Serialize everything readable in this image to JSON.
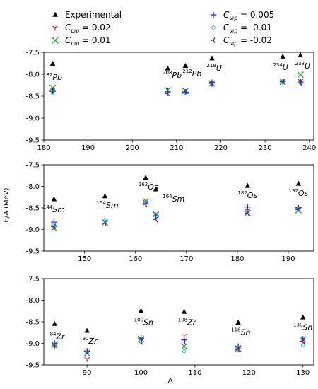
{
  "legend": {
    "placement": "top",
    "entries": [
      {
        "key": "exp",
        "label": "Experimental",
        "marker": "triangle",
        "color": "#000000"
      },
      {
        "key": "c002",
        "label": "Cωρ = 0.02",
        "marker": "tri_down",
        "color": "#d62728"
      },
      {
        "key": "c001",
        "label": "Cωρ = 0.01",
        "marker": "x",
        "color": "#2ca02c"
      },
      {
        "key": "c0005",
        "label": "Cωρ = 0.005",
        "marker": "plus",
        "color": "#1f2bd6"
      },
      {
        "key": "cm001",
        "label": "Cωρ = -0.01",
        "marker": "circle",
        "color": "#17becf"
      },
      {
        "key": "cm002",
        "label": "Cωρ = -0.02",
        "marker": "tri_left",
        "color": "#6a1b9a"
      }
    ]
  },
  "ylabel": "E/A (MeV)",
  "xlabel": "A",
  "chart_data": [
    {
      "type": "scatter",
      "xlim": [
        180,
        241
      ],
      "ylim": [
        -9.5,
        -7.5
      ],
      "xticks": [
        180,
        190,
        200,
        210,
        220,
        230,
        240
      ],
      "yticks": [
        -7.5,
        -8.0,
        -8.5,
        -9.0,
        -9.5
      ],
      "ytick_labels": [
        "-7.5",
        "-8.0",
        "-8.5",
        "-9.0",
        "-9.5"
      ],
      "nuclei": [
        {
          "mass": "182",
          "symbol": "Pb",
          "A": 182,
          "exp": -7.76,
          "c002": -8.35,
          "c001": -8.31,
          "c0005": -8.39,
          "cm001": -8.42,
          "cm002": -8.38
        },
        {
          "mass": "208",
          "symbol": "Pb",
          "A": 208,
          "exp": -7.87,
          "c002": -8.43,
          "c001": -8.36,
          "c0005": -8.39,
          "cm001": -8.4,
          "cm002": -8.44
        },
        {
          "mass": "212",
          "symbol": "Pb",
          "A": 212,
          "exp": -7.81,
          "c002": -8.36,
          "c001": -8.38,
          "c0005": -8.41,
          "cm001": -8.42,
          "cm002": -8.4
        },
        {
          "mass": "218",
          "symbol": "U",
          "A": 218,
          "exp": -7.64,
          "c002": -8.19,
          "c001": -8.21,
          "c0005": -8.19,
          "cm001": -8.24,
          "cm002": -8.21
        },
        {
          "mass": "234",
          "symbol": "U",
          "A": 234,
          "exp": -7.6,
          "c002": -8.17,
          "c001": -8.17,
          "c0005": -8.17,
          "cm001": -8.18,
          "cm002": -8.17
        },
        {
          "mass": "238",
          "symbol": "U",
          "A": 238,
          "exp": -7.57,
          "c002": -8.15,
          "c001": -8.01,
          "c0005": -8.18,
          "cm001": -8.19,
          "cm002": -8.2
        }
      ],
      "labels": [
        {
          "mass": "182",
          "symbol": "Pb",
          "x": 182,
          "y": -8.13
        },
        {
          "mass": "208",
          "symbol": "Pb",
          "x": 209,
          "y": -8.08
        },
        {
          "mass": "212",
          "symbol": "Pb",
          "x": 213.5,
          "y": -8.05
        },
        {
          "mass": "218",
          "symbol": "U",
          "x": 218.5,
          "y": -7.92
        },
        {
          "mass": "234",
          "symbol": "U",
          "x": 233.5,
          "y": -7.9
        },
        {
          "mass": "238",
          "symbol": "U",
          "x": 238.5,
          "y": -7.87
        }
      ]
    },
    {
      "type": "scatter",
      "xlim": [
        142,
        195
      ],
      "ylim": [
        -9.5,
        -7.5
      ],
      "xticks": [
        150,
        160,
        170,
        180,
        190
      ],
      "yticks": [
        -7.5,
        -8.0,
        -8.5,
        -9.0,
        -9.5
      ],
      "ytick_labels": [
        "-7.5",
        "-8.0",
        "-8.5",
        "-9.0",
        "-9.5"
      ],
      "nuclei": [
        {
          "mass": "144",
          "symbol": "Sm",
          "A": 144,
          "exp": -8.3,
          "c002": -8.96,
          "c001": -8.97,
          "c0005": -8.83,
          "cm001": -8.89,
          "cm002": -8.93
        },
        {
          "mass": "154",
          "symbol": "Sm",
          "A": 154,
          "exp": -8.23,
          "c002": -8.82,
          "c001": -8.84,
          "c0005": -8.8,
          "cm001": -8.78,
          "cm002": -8.86
        },
        {
          "mass": "162",
          "symbol": "Os",
          "A": 162,
          "exp": -7.8,
          "c002": -8.36,
          "c001": -8.34,
          "c0005": -8.4,
          "cm001": -8.38,
          "cm002": -8.42
        },
        {
          "mass": "164",
          "symbol": "Sm",
          "A": 164,
          "exp": -8.07,
          "c002": -8.64,
          "c001": -8.65,
          "c0005": -8.68,
          "cm001": -8.66,
          "cm002": -8.77
        },
        {
          "mass": "182",
          "symbol": "Os",
          "A": 182,
          "exp": -7.99,
          "c002": -8.56,
          "c001": -8.62,
          "c0005": -8.48,
          "cm001": -8.6,
          "cm002": -8.62
        },
        {
          "mass": "192",
          "symbol": "Os",
          "A": 192,
          "exp": -7.94,
          "c002": -8.52,
          "c001": -8.55,
          "c0005": -8.5,
          "cm001": -8.53,
          "cm002": -8.54
        }
      ],
      "labels": [
        {
          "mass": "144",
          "symbol": "Sm",
          "x": 144,
          "y": -8.6
        },
        {
          "mass": "154",
          "symbol": "Sm",
          "x": 154.5,
          "y": -8.5
        },
        {
          "mass": "162",
          "symbol": "Os",
          "x": 162.5,
          "y": -8.07
        },
        {
          "mass": "164",
          "symbol": "Sm",
          "x": 167.5,
          "y": -8.35
        },
        {
          "mass": "182",
          "symbol": "Os",
          "x": 182,
          "y": -8.27
        },
        {
          "mass": "192",
          "symbol": "Os",
          "x": 192,
          "y": -8.22
        }
      ]
    },
    {
      "type": "scatter",
      "xlim": [
        82,
        132
      ],
      "ylim": [
        -9.5,
        -7.5
      ],
      "xticks": [
        90,
        100,
        110,
        120,
        130
      ],
      "yticks": [
        -7.5,
        -8.0,
        -8.5,
        -9.0,
        -9.5
      ],
      "ytick_labels": [
        "-7.5",
        "-8.0",
        "-8.5",
        "-9.0",
        "-9.5"
      ],
      "nuclei": [
        {
          "mass": "84",
          "symbol": "Zr",
          "A": 84,
          "exp": -8.55,
          "c002": -9.07,
          "c001": -9.03,
          "c0005": -9.0,
          "cm001": -9.02,
          "cm002": -9.04
        },
        {
          "mass": "90",
          "symbol": "Zr",
          "A": 90,
          "exp": -8.71,
          "c002": -9.36,
          "c001": -9.23,
          "c0005": -9.18,
          "cm001": -9.21,
          "cm002": -9.19
        },
        {
          "mass": "100",
          "symbol": "Sn",
          "A": 100,
          "exp": -8.25,
          "c002": -8.93,
          "c001": -8.9,
          "c0005": -8.88,
          "cm001": -8.96,
          "cm002": -8.97
        },
        {
          "mass": "108",
          "symbol": "Zr",
          "A": 108,
          "exp": -8.27,
          "c002": -8.82,
          "c001": -9.07,
          "c0005": -8.92,
          "cm001": -9.18,
          "cm002": -8.97
        },
        {
          "mass": "118",
          "symbol": "Sn",
          "A": 118,
          "exp": -8.52,
          "c002": -9.14,
          "c001": -9.12,
          "c0005": -9.07,
          "cm001": -9.1,
          "cm002": -9.14
        },
        {
          "mass": "130",
          "symbol": "Sn",
          "A": 130,
          "exp": -8.4,
          "c002": -8.93,
          "c001": -8.91,
          "c0005": -8.9,
          "cm001": -9.04,
          "cm002": -8.95
        }
      ],
      "labels": [
        {
          "mass": "84",
          "symbol": "Zr",
          "x": 84.5,
          "y": -8.9
        },
        {
          "mass": "90",
          "symbol": "Zr",
          "x": 90.5,
          "y": -9.01
        },
        {
          "mass": "100",
          "symbol": "Sn",
          "x": 100.5,
          "y": -8.57
        },
        {
          "mass": "108",
          "symbol": "Zr",
          "x": 108.5,
          "y": -8.57
        },
        {
          "mass": "118",
          "symbol": "Sn",
          "x": 118.5,
          "y": -8.8
        },
        {
          "mass": "130",
          "symbol": "Sn",
          "x": 130,
          "y": -8.69
        }
      ]
    }
  ]
}
